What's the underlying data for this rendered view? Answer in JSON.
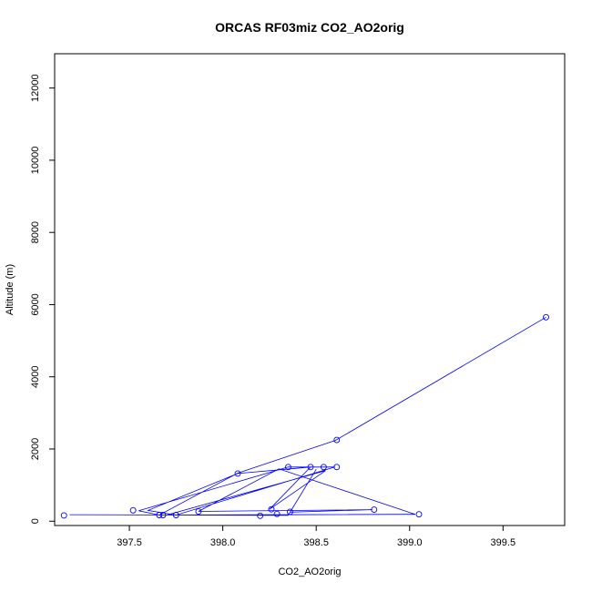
{
  "chart_data": {
    "type": "line",
    "title": "ORCAS RF03miz CO2_AO2orig",
    "xlabel": "CO2_AO2orig",
    "ylabel": "Altitude (m)",
    "xlim": [
      397.1,
      399.83
    ],
    "ylim": [
      -120,
      12950
    ],
    "xticks": [
      397.5,
      398.0,
      398.5,
      399.0,
      399.5
    ],
    "xtick_labels": [
      "397.5",
      "398.0",
      "398.5",
      "399.0",
      "399.5"
    ],
    "yticks": [
      0,
      2000,
      4000,
      6000,
      8000,
      10000,
      12000
    ],
    "ytick_labels": [
      "0",
      "2000",
      "4000",
      "6000",
      "8000",
      "10000",
      "12000"
    ],
    "grid": false,
    "series_color": "#0000ff",
    "points": [
      {
        "x": 397.15,
        "y": 160
      },
      {
        "x": 397.52,
        "y": 300
      },
      {
        "x": 397.66,
        "y": 170
      },
      {
        "x": 397.68,
        "y": 170
      },
      {
        "x": 397.75,
        "y": 170
      },
      {
        "x": 397.87,
        "y": 270
      },
      {
        "x": 398.08,
        "y": 1320
      },
      {
        "x": 398.2,
        "y": 150
      },
      {
        "x": 398.26,
        "y": 330
      },
      {
        "x": 398.29,
        "y": 200
      },
      {
        "x": 398.35,
        "y": 1500
      },
      {
        "x": 398.36,
        "y": 260
      },
      {
        "x": 398.47,
        "y": 1500
      },
      {
        "x": 398.54,
        "y": 1500
      },
      {
        "x": 398.61,
        "y": 1500
      },
      {
        "x": 398.61,
        "y": 2250
      },
      {
        "x": 398.81,
        "y": 320
      },
      {
        "x": 399.05,
        "y": 190
      },
      {
        "x": 399.73,
        "y": 5650
      }
    ],
    "path": [
      {
        "x": 397.18,
        "y": 180
      },
      {
        "x": 398.35,
        "y": 160
      },
      {
        "x": 398.5,
        "y": 1440
      },
      {
        "x": 398.36,
        "y": 250
      },
      {
        "x": 398.8,
        "y": 320
      },
      {
        "x": 397.87,
        "y": 270
      },
      {
        "x": 398.3,
        "y": 1450
      },
      {
        "x": 399.03,
        "y": 190
      },
      {
        "x": 397.7,
        "y": 170
      },
      {
        "x": 398.55,
        "y": 1400
      },
      {
        "x": 398.25,
        "y": 330
      },
      {
        "x": 398.47,
        "y": 1500
      },
      {
        "x": 398.08,
        "y": 1320
      },
      {
        "x": 397.6,
        "y": 300
      },
      {
        "x": 397.75,
        "y": 170
      },
      {
        "x": 398.6,
        "y": 1500
      },
      {
        "x": 398.35,
        "y": 1500
      },
      {
        "x": 397.55,
        "y": 290
      },
      {
        "x": 397.66,
        "y": 170
      },
      {
        "x": 398.08,
        "y": 1330
      },
      {
        "x": 398.58,
        "y": 2200
      },
      {
        "x": 398.6,
        "y": 2230
      },
      {
        "x": 399.73,
        "y": 5650
      }
    ]
  }
}
